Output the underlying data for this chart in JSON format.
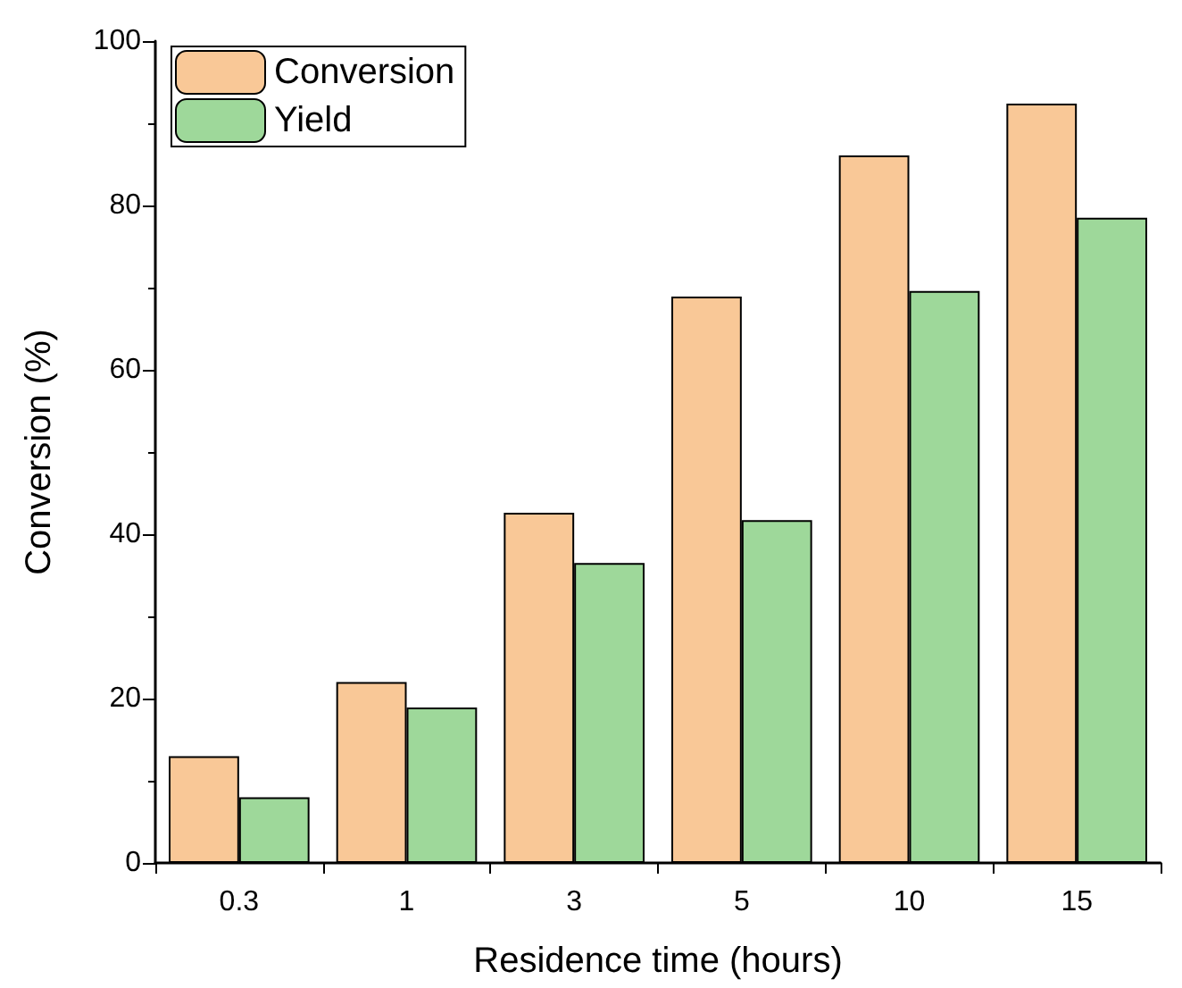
{
  "chart_data": {
    "type": "bar",
    "xlabel": "Residence time (hours)",
    "ylabel": "Conversion (%)",
    "categories": [
      "0.3",
      "1",
      "3",
      "5",
      "10",
      "15"
    ],
    "series": [
      {
        "name": "Conversion",
        "color": "#f9c897",
        "values": [
          13.0,
          22.0,
          42.6,
          68.9,
          86.1,
          92.4
        ]
      },
      {
        "name": "Yield",
        "color": "#9ed89a",
        "values": [
          8.0,
          18.9,
          36.5,
          41.7,
          69.6,
          78.5
        ]
      }
    ],
    "ylim": [
      0,
      100
    ],
    "yticks": [
      0,
      20,
      40,
      60,
      80,
      100
    ],
    "grid": false,
    "legend": "top left"
  }
}
